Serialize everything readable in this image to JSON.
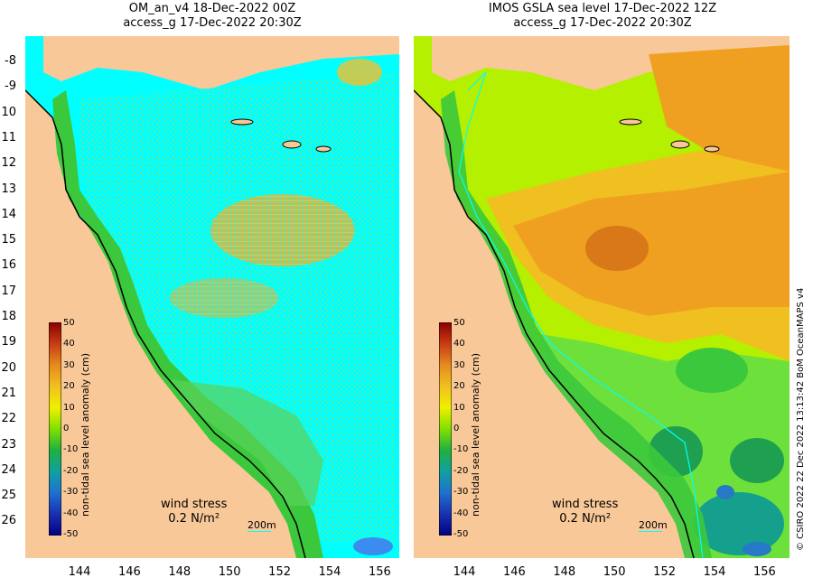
{
  "left_panel": {
    "title_line1": "OM_an_v4  18-Dec-2022 00Z",
    "title_line2": "access_g 17-Dec-2022 20:30Z",
    "wind_label": "wind stress",
    "wind_value": "0.2 N/m²",
    "scale_label": "200m"
  },
  "right_panel": {
    "title_line1": "IMOS GSLA sea level  17-Dec-2022 12Z",
    "title_line2": "access_g 17-Dec-2022 20:30Z",
    "wind_label": "wind stress",
    "wind_value": "0.2 N/m²",
    "scale_label": "200m"
  },
  "colorbar": {
    "title": "non-tidal sea level anomaly (cm)",
    "ticks": [
      "50",
      "40",
      "30",
      "20",
      "10",
      "0",
      "-10",
      "-20",
      "-30",
      "-40",
      "-50"
    ]
  },
  "axes": {
    "lat_ticks": [
      "-8",
      "-9",
      "10",
      "11",
      "12",
      "13",
      "14",
      "15",
      "16",
      "17",
      "18",
      "19",
      "20",
      "21",
      "22",
      "23",
      "24",
      "25",
      "26"
    ],
    "lon_ticks": [
      "144",
      "146",
      "148",
      "150",
      "152",
      "154",
      "156"
    ]
  },
  "credit": "© CSIRO 2022   22 Dec 2022 13:13:42 BoM OceanMAPS v4",
  "colors": {
    "land": "#f8c898",
    "cyan": "#00ffff",
    "green": "#3cc83c",
    "lime": "#b4f000",
    "yellow": "#f0e000",
    "orange": "#f0a020",
    "darkorange": "#d87818"
  }
}
